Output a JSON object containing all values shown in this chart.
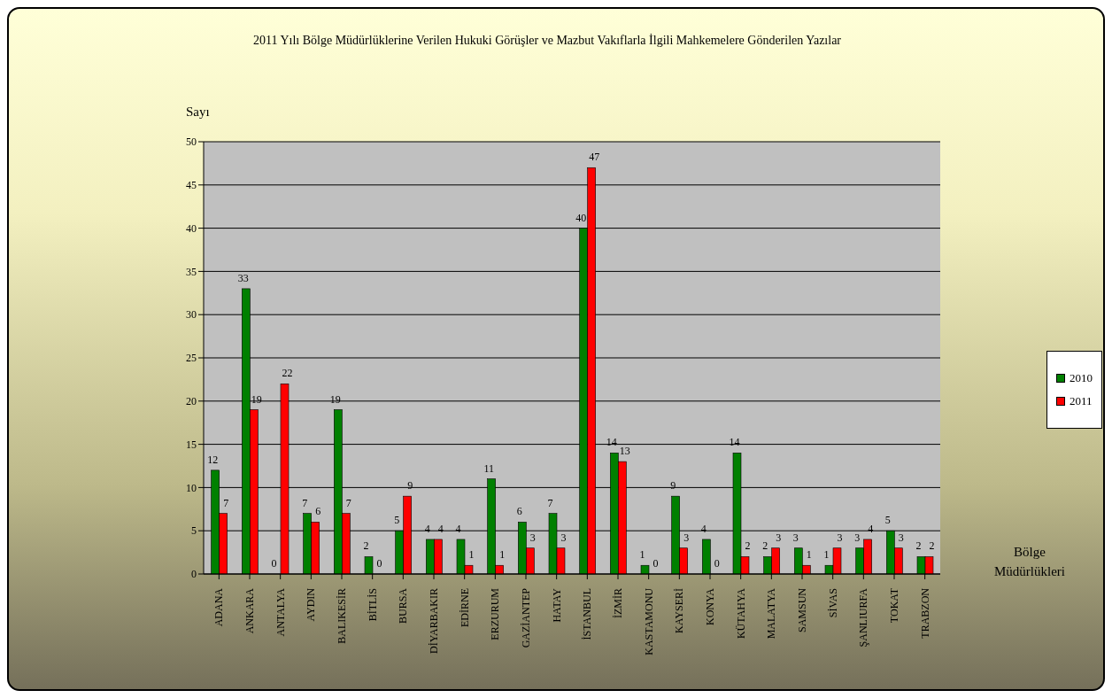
{
  "chart_data": {
    "type": "bar",
    "title": "2011 Yılı  Bölge Müdürlüklerine Verilen Hukuki Görüşler ve Mazbut Vakıflarla İlgili  Mahkemelere Gönderilen Yazılar",
    "ylabel": "Sayı",
    "xlabel": "Bölge Müdürlükleri",
    "categories": [
      "ADANA",
      "ANKARA",
      "ANTALYA",
      "AYDIN",
      "BALIKESİR",
      "BİTLİS",
      "BURSA",
      "DİYARBAKIR",
      "EDİRNE",
      "ERZURUM",
      "GAZİANTEP",
      "HATAY",
      "İSTANBUL",
      "İZMİR",
      "KASTAMONU",
      "KAYSERİ",
      "KONYA",
      "KÜTAHYA",
      "MALATYA",
      "SAMSUN",
      "SİVAS",
      "ŞANLIURFA",
      "TOKAT",
      "TRABZON"
    ],
    "series": [
      {
        "name": "2010",
        "color": "#008000",
        "values": [
          12,
          33,
          0,
          7,
          19,
          2,
          5,
          4,
          4,
          11,
          6,
          7,
          40,
          14,
          1,
          9,
          4,
          14,
          2,
          3,
          1,
          3,
          5,
          2
        ]
      },
      {
        "name": "2011",
        "color": "#ff0000",
        "values": [
          7,
          19,
          22,
          6,
          7,
          0,
          9,
          4,
          1,
          1,
          3,
          3,
          47,
          13,
          0,
          3,
          0,
          2,
          3,
          1,
          3,
          4,
          3,
          2
        ]
      }
    ],
    "ylim": [
      0,
      50
    ],
    "yticks": [
      0,
      5,
      10,
      15,
      20,
      25,
      30,
      35,
      40,
      45,
      50
    ],
    "grid": "y",
    "legend": "right",
    "data_labels": true
  }
}
